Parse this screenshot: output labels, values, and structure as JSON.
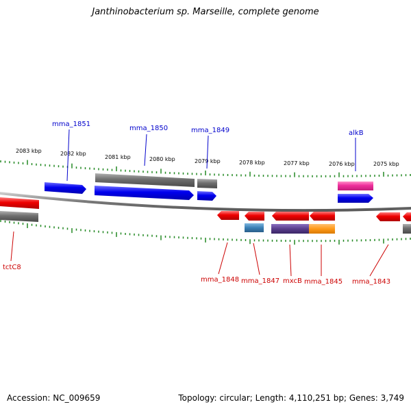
{
  "title": "Janthinobacterium sp. Marseille, complete genome",
  "footer": {
    "accession": "Accession: NC_009659",
    "stats": "Topology: circular; Length: 4,110,251 bp; Genes: 3,749"
  },
  "colors": {
    "forward_gene": "#0000ee",
    "reverse_gene": "#ee0000",
    "other_feature": "#707070",
    "pink_gene": "#ee2d9b",
    "teal_gene": "#3a7fb5",
    "purple_gene": "#5a3d8c",
    "orange_gene": "#ff9a1a",
    "tick": "#228822"
  },
  "scale_labels": [
    "2083 kbp",
    "2082 kbp",
    "2081 kbp",
    "2080 kbp",
    "2079 kbp",
    "2078 kbp",
    "2077 kbp",
    "2076 kbp",
    "2075 kbp"
  ],
  "top_labels": [
    "mma_1851",
    "mma_1850",
    "mma_1849",
    "alkB"
  ],
  "bottom_labels": [
    "tctC8",
    "mma_1848",
    "mma_1847",
    "mxcB",
    "mma_1845",
    "mma_1843"
  ]
}
